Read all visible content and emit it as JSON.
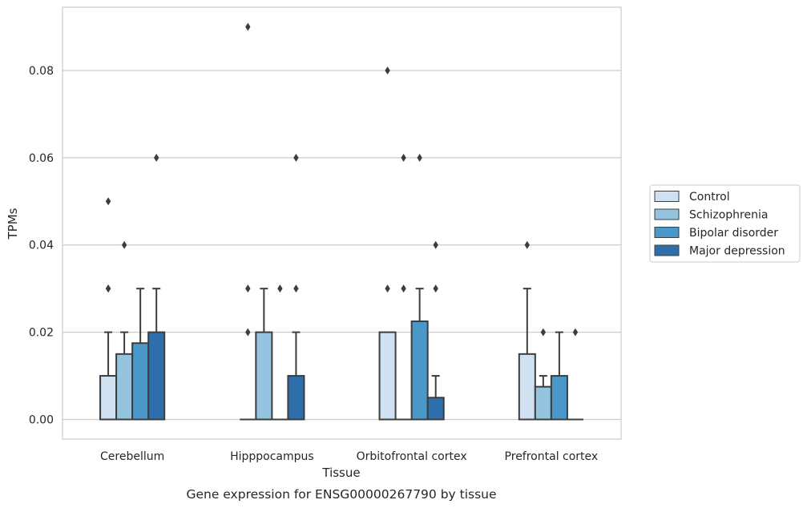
{
  "chart_data": {
    "type": "box",
    "caption": "Gene expression for ENSG00000267790 by tissue",
    "xlabel": "Tissue",
    "ylabel": "TPMs",
    "ylim": [
      -0.0045,
      0.0945
    ],
    "yticks": [
      0.0,
      0.02,
      0.04,
      0.06,
      0.08
    ],
    "ytick_labels": [
      "0.00",
      "0.02",
      "0.04",
      "0.06",
      "0.08"
    ],
    "grid": "horizontal",
    "legend_position": "right",
    "categories": [
      "Cerebellum",
      "Hipppocampus",
      "Orbitofrontal cortex",
      "Prefrontal cortex"
    ],
    "series": [
      {
        "name": "Control",
        "color": "#d0e1f2",
        "boxes": [
          {
            "q1": 0.0,
            "median": 0.0,
            "q3": 0.01,
            "whisker_low": 0.0,
            "whisker_high": 0.02,
            "outliers": [
              0.03,
              0.03,
              0.05
            ]
          },
          {
            "q1": 0.0,
            "median": 0.0,
            "q3": 0.0,
            "whisker_low": 0.0,
            "whisker_high": 0.0,
            "outliers": [
              0.02,
              0.03,
              0.09
            ]
          },
          {
            "q1": 0.0,
            "median": 0.0,
            "q3": 0.02,
            "whisker_low": 0.0,
            "whisker_high": 0.02,
            "outliers": [
              0.03,
              0.08
            ]
          },
          {
            "q1": 0.0,
            "median": 0.0,
            "q3": 0.015,
            "whisker_low": 0.0,
            "whisker_high": 0.03,
            "outliers": [
              0.04
            ]
          }
        ]
      },
      {
        "name": "Schizophrenia",
        "color": "#94c4df",
        "boxes": [
          {
            "q1": 0.0,
            "median": 0.0,
            "q3": 0.015,
            "whisker_low": 0.0,
            "whisker_high": 0.02,
            "outliers": [
              0.04
            ]
          },
          {
            "q1": 0.0,
            "median": 0.0,
            "q3": 0.02,
            "whisker_low": 0.0,
            "whisker_high": 0.03,
            "outliers": []
          },
          {
            "q1": 0.0,
            "median": 0.0,
            "q3": 0.0,
            "whisker_low": 0.0,
            "whisker_high": 0.0,
            "outliers": [
              0.03,
              0.06
            ]
          },
          {
            "q1": 0.0,
            "median": 0.0,
            "q3": 0.0075,
            "whisker_low": 0.0,
            "whisker_high": 0.01,
            "outliers": [
              0.02
            ]
          }
        ]
      },
      {
        "name": "Bipolar disorder",
        "color": "#4a98c9",
        "boxes": [
          {
            "q1": 0.0,
            "median": 0.0,
            "q3": 0.0175,
            "whisker_low": 0.0,
            "whisker_high": 0.03,
            "outliers": []
          },
          {
            "q1": 0.0,
            "median": 0.0,
            "q3": 0.0,
            "whisker_low": 0.0,
            "whisker_high": 0.0,
            "outliers": [
              0.03
            ]
          },
          {
            "q1": 0.0,
            "median": 0.0,
            "q3": 0.0225,
            "whisker_low": 0.0,
            "whisker_high": 0.03,
            "outliers": [
              0.06
            ]
          },
          {
            "q1": 0.0,
            "median": 0.0,
            "q3": 0.01,
            "whisker_low": 0.0,
            "whisker_high": 0.02,
            "outliers": []
          }
        ]
      },
      {
        "name": "Major depression",
        "color": "#2e6fab",
        "boxes": [
          {
            "q1": 0.0,
            "median": 0.0,
            "q3": 0.02,
            "whisker_low": 0.0,
            "whisker_high": 0.03,
            "outliers": [
              0.06
            ]
          },
          {
            "q1": 0.0,
            "median": 0.0,
            "q3": 0.01,
            "whisker_low": 0.0,
            "whisker_high": 0.02,
            "outliers": [
              0.03,
              0.06
            ]
          },
          {
            "q1": 0.0,
            "median": 0.0,
            "q3": 0.005,
            "whisker_low": 0.0,
            "whisker_high": 0.01,
            "outliers": [
              0.03,
              0.04
            ]
          },
          {
            "q1": 0.0,
            "median": 0.0,
            "q3": 0.0,
            "whisker_low": 0.0,
            "whisker_high": 0.0,
            "outliers": [
              0.02
            ]
          }
        ]
      }
    ]
  }
}
